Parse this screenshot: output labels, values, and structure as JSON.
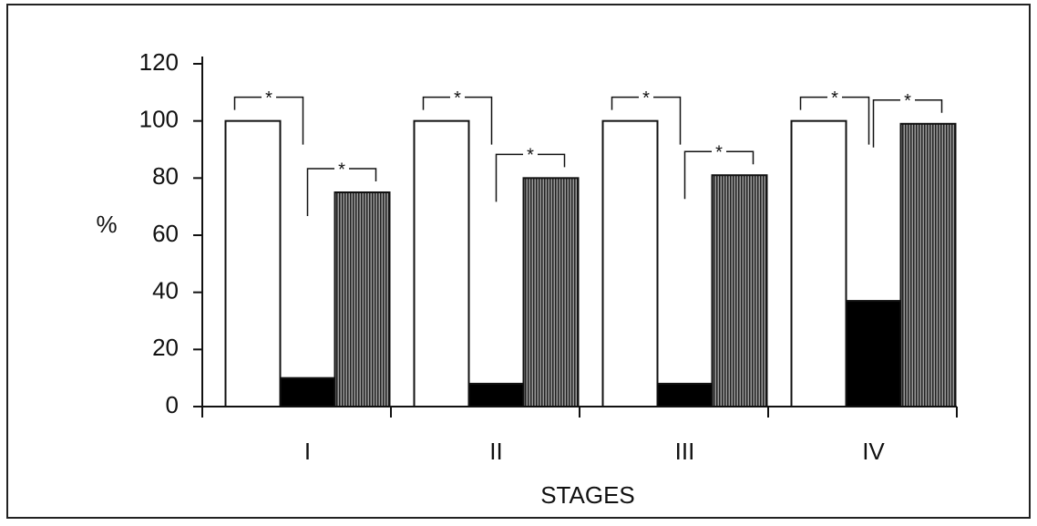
{
  "chart_data": {
    "type": "bar",
    "x_label": "STAGES",
    "y_label": "%",
    "categories": [
      "I",
      "II",
      "III",
      "IV"
    ],
    "series": [
      {
        "color": "#ffffff",
        "values": [
          100,
          100,
          100,
          100
        ]
      },
      {
        "color": "#000000",
        "values": [
          10,
          8,
          8,
          37
        ]
      },
      {
        "color": "#6a6a6a",
        "values": [
          75,
          80,
          81,
          99
        ]
      }
    ],
    "ylim": [
      0,
      120
    ],
    "yticks": [
      0,
      20,
      40,
      60,
      80,
      100,
      120
    ],
    "grid": false,
    "annotations": [
      {
        "label": "*",
        "group": 0,
        "between": [
          0,
          1
        ]
      },
      {
        "label": "*",
        "group": 0,
        "between": [
          1,
          2
        ]
      },
      {
        "label": "*",
        "group": 1,
        "between": [
          0,
          1
        ]
      },
      {
        "label": "*",
        "group": 1,
        "between": [
          1,
          2
        ]
      },
      {
        "label": "*",
        "group": 2,
        "between": [
          0,
          1
        ]
      },
      {
        "label": "*",
        "group": 2,
        "between": [
          1,
          2
        ]
      },
      {
        "label": "*",
        "group": 3,
        "between": [
          0,
          1
        ]
      },
      {
        "label": "*",
        "group": 3,
        "between": [
          1,
          2
        ]
      }
    ]
  }
}
